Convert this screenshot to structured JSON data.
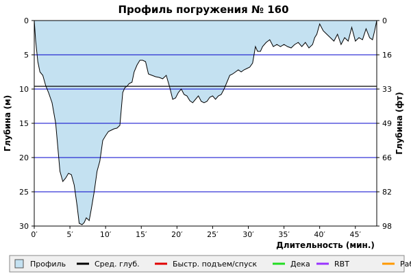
{
  "chart_data": {
    "type": "area",
    "title": "Профиль погружения № 160",
    "xlabel": "Длительность (мин.)",
    "ylabel": "Глубина (м)",
    "ylabel_right": "Глубина (фт)",
    "xlim": [
      0,
      48
    ],
    "ylim": [
      0,
      30
    ],
    "y_inverted": true,
    "x_ticks": [
      "0′",
      "5′",
      "10′",
      "15′",
      "20′",
      "25′",
      "30′",
      "35′",
      "40′",
      "45′"
    ],
    "x_tick_values": [
      0,
      5,
      10,
      15,
      20,
      25,
      30,
      35,
      40,
      45
    ],
    "y_ticks": [
      0,
      5,
      10,
      15,
      20,
      25,
      30
    ],
    "y_right_ticks": [
      "0",
      "16",
      "33",
      "49",
      "66",
      "82",
      "98"
    ],
    "grid": true,
    "average_depth": 9.6,
    "series": [
      {
        "name": "Профиль",
        "x": [
          0,
          0.2,
          0.5,
          0.8,
          1.2,
          1.6,
          2.0,
          2.5,
          3.0,
          3.3,
          3.6,
          4.0,
          4.4,
          4.8,
          5.2,
          5.6,
          6.0,
          6.3,
          6.7,
          7.0,
          7.3,
          7.7,
          8.0,
          8.4,
          8.8,
          9.2,
          9.6,
          10.0,
          10.4,
          10.8,
          11.2,
          11.6,
          12.0,
          12.4,
          12.7,
          13.0,
          13.3,
          13.7,
          14.0,
          14.4,
          14.8,
          15.2,
          15.6,
          16.0,
          16.5,
          17.0,
          17.5,
          18.0,
          18.5,
          19.0,
          19.4,
          19.8,
          20.2,
          20.6,
          21.0,
          21.4,
          21.8,
          22.2,
          22.6,
          23.0,
          23.4,
          23.8,
          24.2,
          24.6,
          25.0,
          25.4,
          25.8,
          26.2,
          26.6,
          27.0,
          27.4,
          27.8,
          28.2,
          28.6,
          29.0,
          29.4,
          29.8,
          30.2,
          30.6,
          31.0,
          31.3,
          31.7,
          32.0,
          32.5,
          33.0,
          33.5,
          34.0,
          34.5,
          35.0,
          35.5,
          36.0,
          36.5,
          37.0,
          37.5,
          38.0,
          38.5,
          39.0,
          39.3,
          39.6,
          40.0,
          40.5,
          41.0,
          41.5,
          42.0,
          42.5,
          43.0,
          43.5,
          44.0,
          44.5,
          45.0,
          45.5,
          46.0,
          46.5,
          47.0,
          47.4,
          47.7,
          48.0
        ],
        "values": [
          0,
          3.0,
          6.0,
          7.5,
          8.0,
          9.5,
          10.5,
          12.0,
          15.0,
          18.5,
          22.0,
          23.5,
          23.0,
          22.3,
          22.5,
          24.0,
          27.0,
          29.6,
          29.8,
          29.5,
          28.8,
          29.2,
          27.5,
          25.0,
          22.0,
          20.5,
          17.5,
          16.8,
          16.2,
          16.0,
          15.8,
          15.7,
          15.3,
          10.5,
          9.8,
          9.6,
          9.2,
          9.0,
          7.5,
          6.5,
          5.8,
          5.8,
          6.0,
          7.8,
          8.0,
          8.2,
          8.3,
          8.5,
          8.0,
          9.8,
          11.5,
          11.3,
          10.5,
          10.0,
          10.8,
          11.0,
          11.7,
          12.0,
          11.5,
          11.0,
          11.8,
          12.0,
          11.8,
          11.2,
          11.0,
          11.5,
          11.0,
          10.8,
          10.0,
          9.0,
          8.0,
          7.8,
          7.5,
          7.2,
          7.5,
          7.2,
          7.0,
          6.8,
          6.2,
          3.8,
          4.5,
          4.5,
          3.8,
          3.2,
          2.8,
          3.8,
          3.5,
          3.8,
          3.5,
          3.8,
          4.0,
          3.5,
          3.2,
          3.8,
          3.2,
          4.0,
          3.5,
          2.5,
          2.0,
          0.5,
          1.5,
          2.0,
          2.5,
          3.0,
          2.0,
          3.5,
          2.5,
          3.0,
          1.0,
          3.0,
          2.5,
          2.8,
          1.2,
          2.5,
          2.8,
          1.5,
          0.0
        ]
      }
    ],
    "legend_position": "bottom",
    "legend": [
      {
        "label": "Профиль",
        "kind": "box",
        "color": "#c4e1f1"
      },
      {
        "label": "Сред. глуб.",
        "kind": "line",
        "color": "#000000"
      },
      {
        "label": "Быстр. подъем/спуск",
        "kind": "line",
        "color": "#e00000"
      },
      {
        "label": "Дека",
        "kind": "line",
        "color": "#22dd22"
      },
      {
        "label": "RBT",
        "kind": "line",
        "color": "#9933ff"
      },
      {
        "label": "Раб.",
        "kind": "line",
        "color": "#ff9900"
      }
    ],
    "colors": {
      "fill": "#c4e1f1",
      "profile_line": "#000000",
      "grid": "#0000cc",
      "avg": "#000000"
    }
  }
}
